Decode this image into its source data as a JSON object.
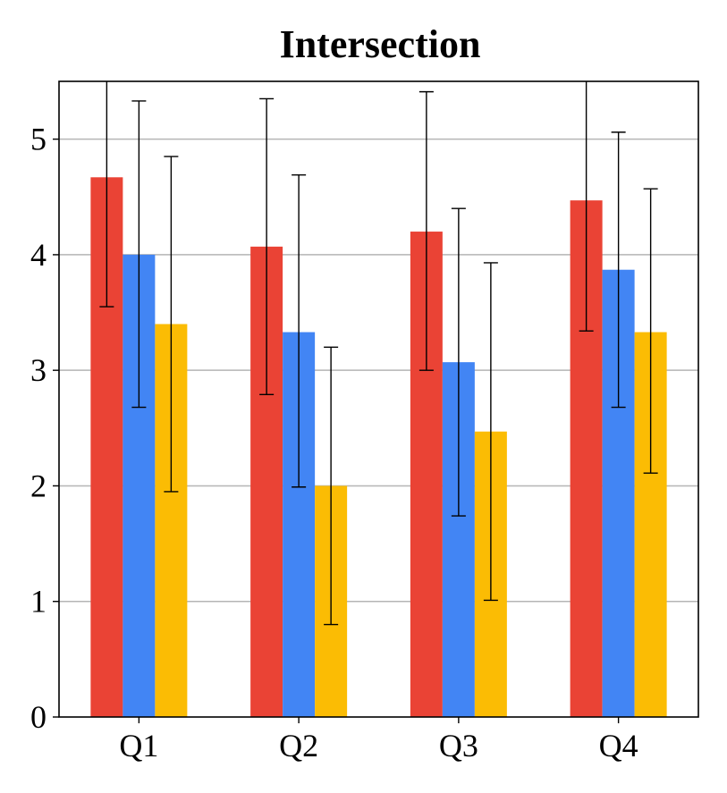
{
  "chart_data": {
    "type": "bar",
    "title": "Intersection",
    "xlabel": "",
    "ylabel": "",
    "categories": [
      "Q1",
      "Q2",
      "Q3",
      "Q4"
    ],
    "ylim": [
      0,
      5.5
    ],
    "yticks": [
      0,
      1,
      2,
      3,
      4,
      5
    ],
    "ytick_labels": [
      "0",
      "1",
      "2",
      "3",
      "4",
      "5"
    ],
    "grid": "horizontal",
    "legend": "none",
    "series": [
      {
        "color": "#ea4335",
        "values": [
          4.67,
          4.07,
          4.2,
          4.47
        ],
        "error_low": [
          3.55,
          2.79,
          3.0,
          3.34
        ],
        "error_high": [
          5.5,
          5.35,
          5.41,
          5.5
        ]
      },
      {
        "color": "#4285f4",
        "values": [
          4.0,
          3.33,
          3.07,
          3.87
        ],
        "error_low": [
          2.68,
          1.99,
          1.74,
          2.68
        ],
        "error_high": [
          5.33,
          4.69,
          4.4,
          5.06
        ]
      },
      {
        "color": "#fbbc04",
        "values": [
          3.4,
          2.0,
          2.47,
          3.33
        ],
        "error_low": [
          1.95,
          0.8,
          1.01,
          2.11
        ],
        "error_high": [
          4.85,
          3.2,
          3.93,
          4.57
        ]
      }
    ]
  }
}
